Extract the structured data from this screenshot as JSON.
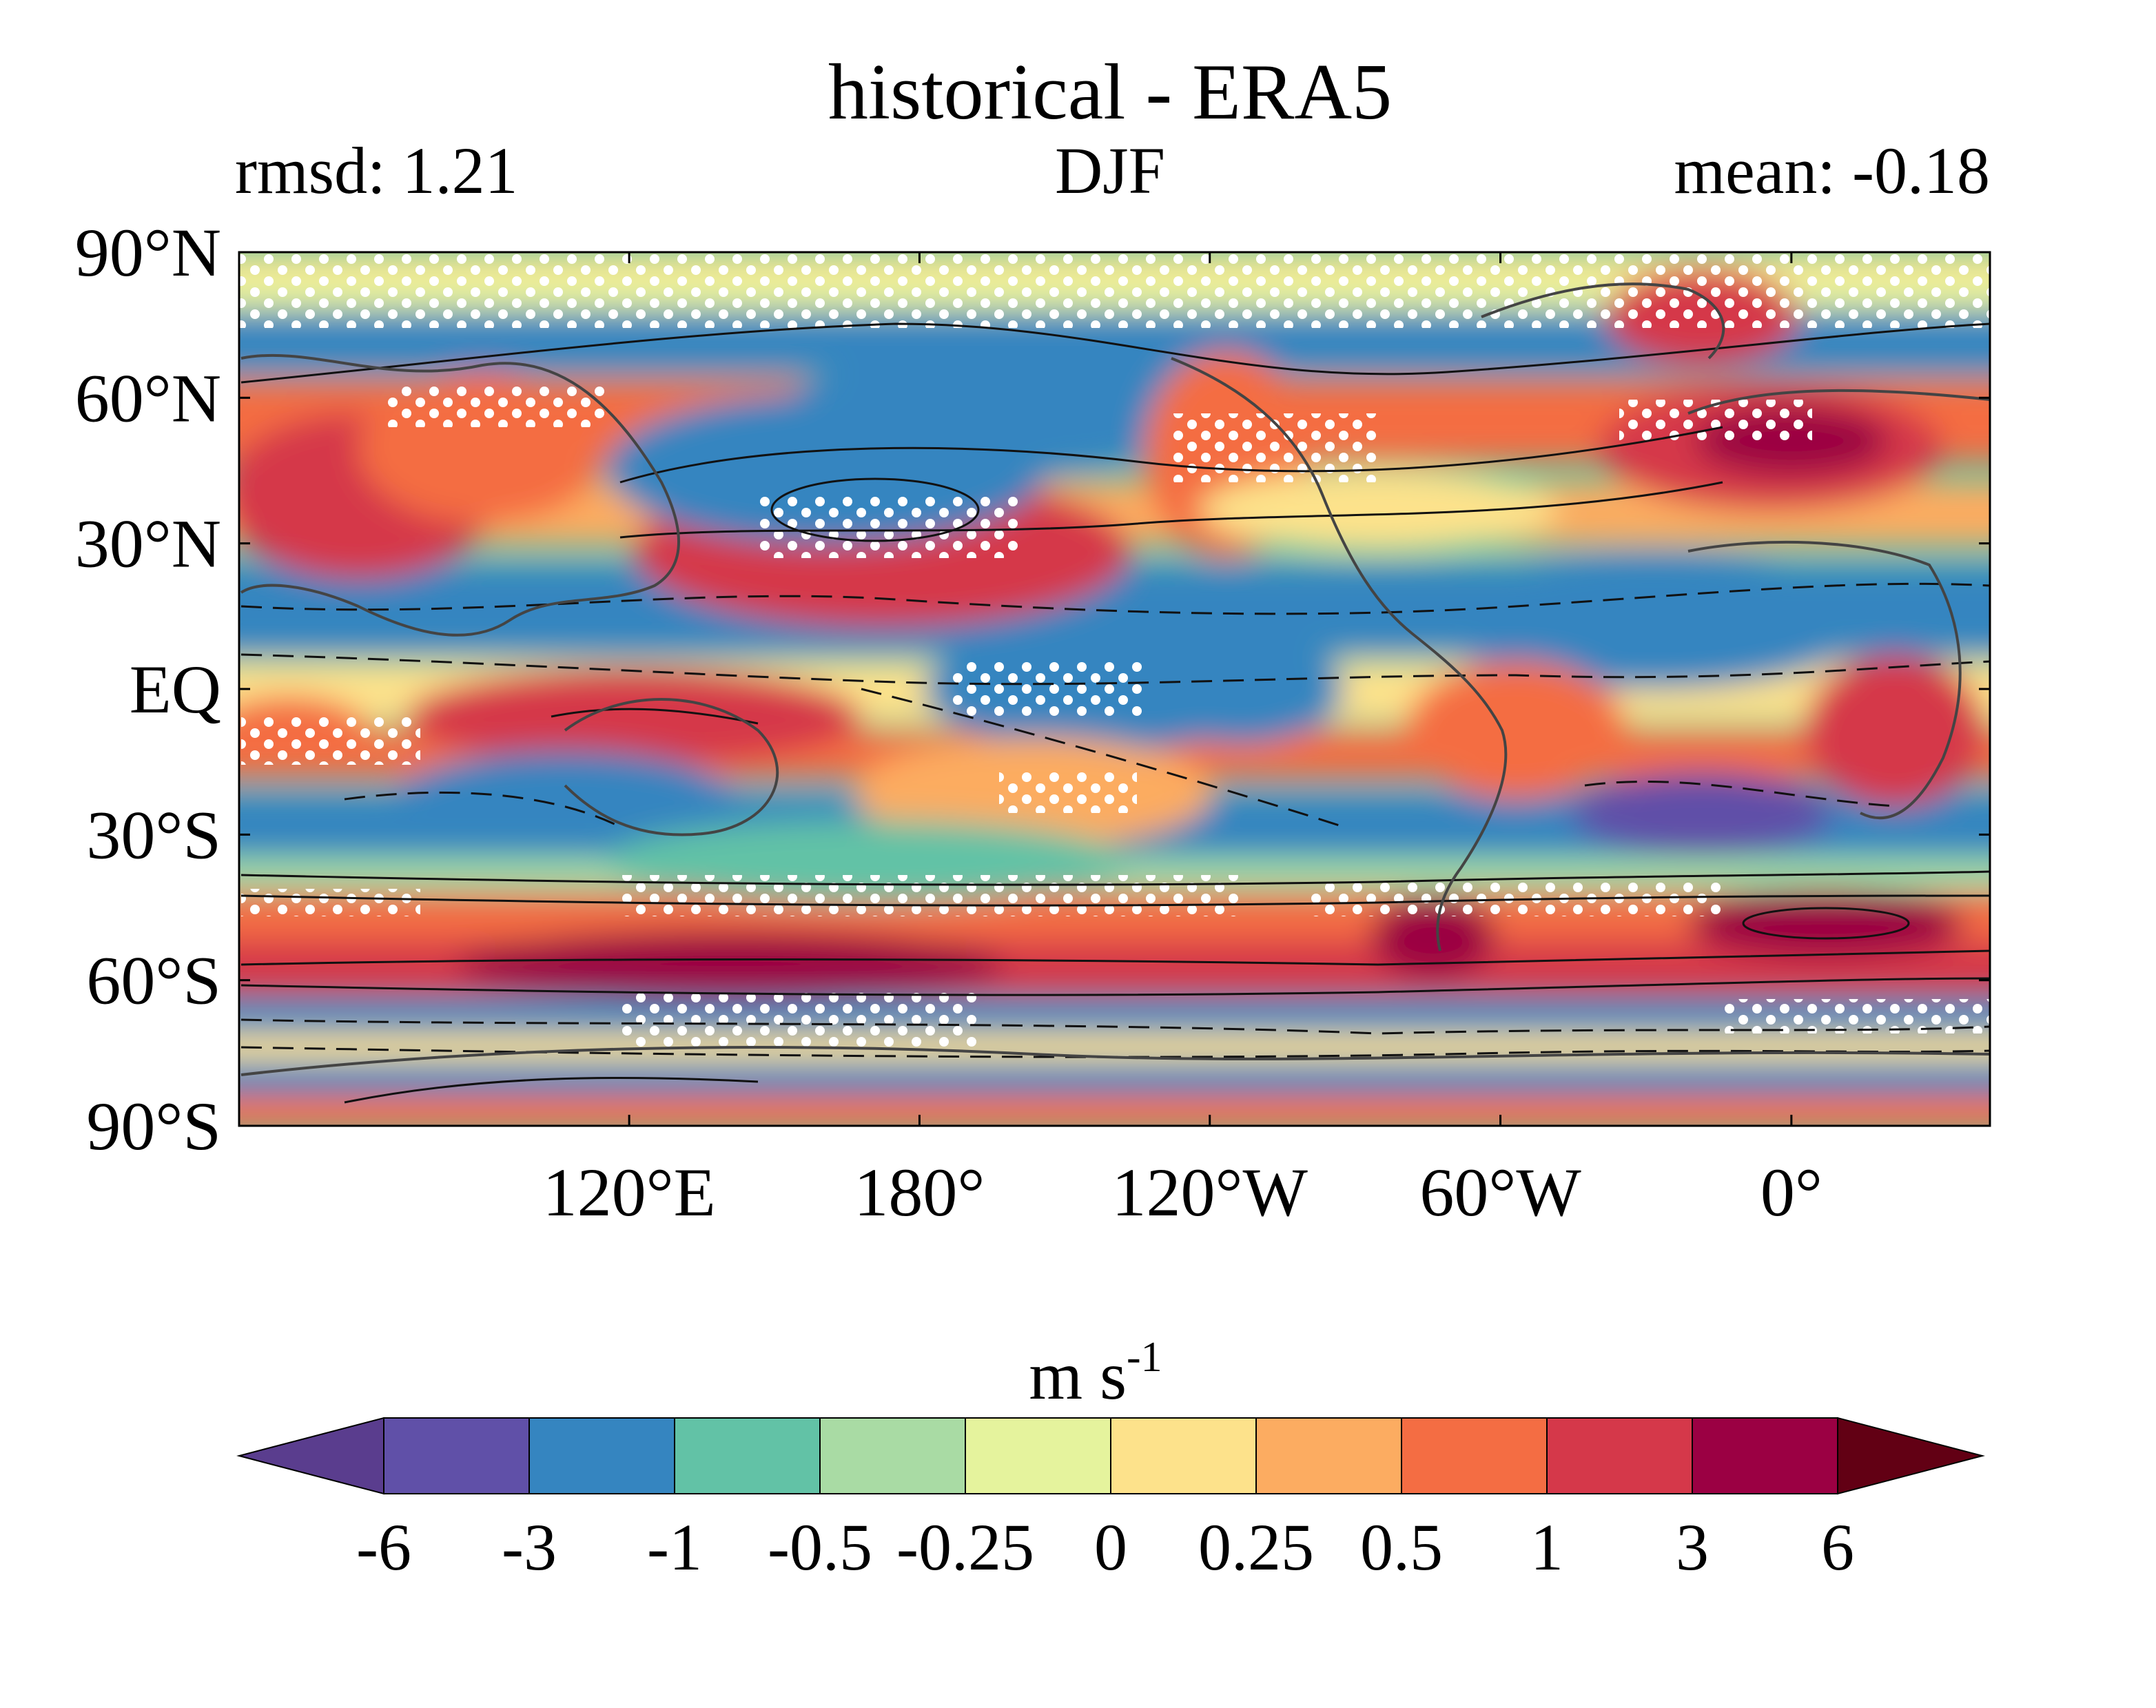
{
  "header": {
    "title": "historical - ERA5",
    "left_stat": "rmsd: 1.21",
    "season": "DJF",
    "right_stat": "mean: -0.18"
  },
  "map": {
    "lat_ticks": [
      "90°N",
      "60°N",
      "30°N",
      "EQ",
      "30°S",
      "60°S",
      "90°S"
    ],
    "lat_values": [
      90,
      60,
      30,
      0,
      -30,
      -60,
      -90
    ],
    "lon_ticks": [
      "120°E",
      "180°",
      "120°W",
      "60°W",
      "0°"
    ],
    "lon_fraction": [
      0.2228,
      0.3886,
      0.5544,
      0.7204,
      0.8866
    ]
  },
  "colorbar": {
    "unit_base": "m s",
    "unit_exp": "-1",
    "labels": [
      "-6",
      "-3",
      "-1",
      "-0.5",
      "-0.25",
      "0",
      "0.25",
      "0.5",
      "1",
      "3",
      "6"
    ],
    "colors": [
      "#5a3d8e",
      "#6050a8",
      "#3585c0",
      "#62c2a6",
      "#a9dba4",
      "#e5f39d",
      "#fde28b",
      "#fcac61",
      "#f46d43",
      "#d5384a",
      "#9b0043",
      "#620014"
    ]
  }
}
